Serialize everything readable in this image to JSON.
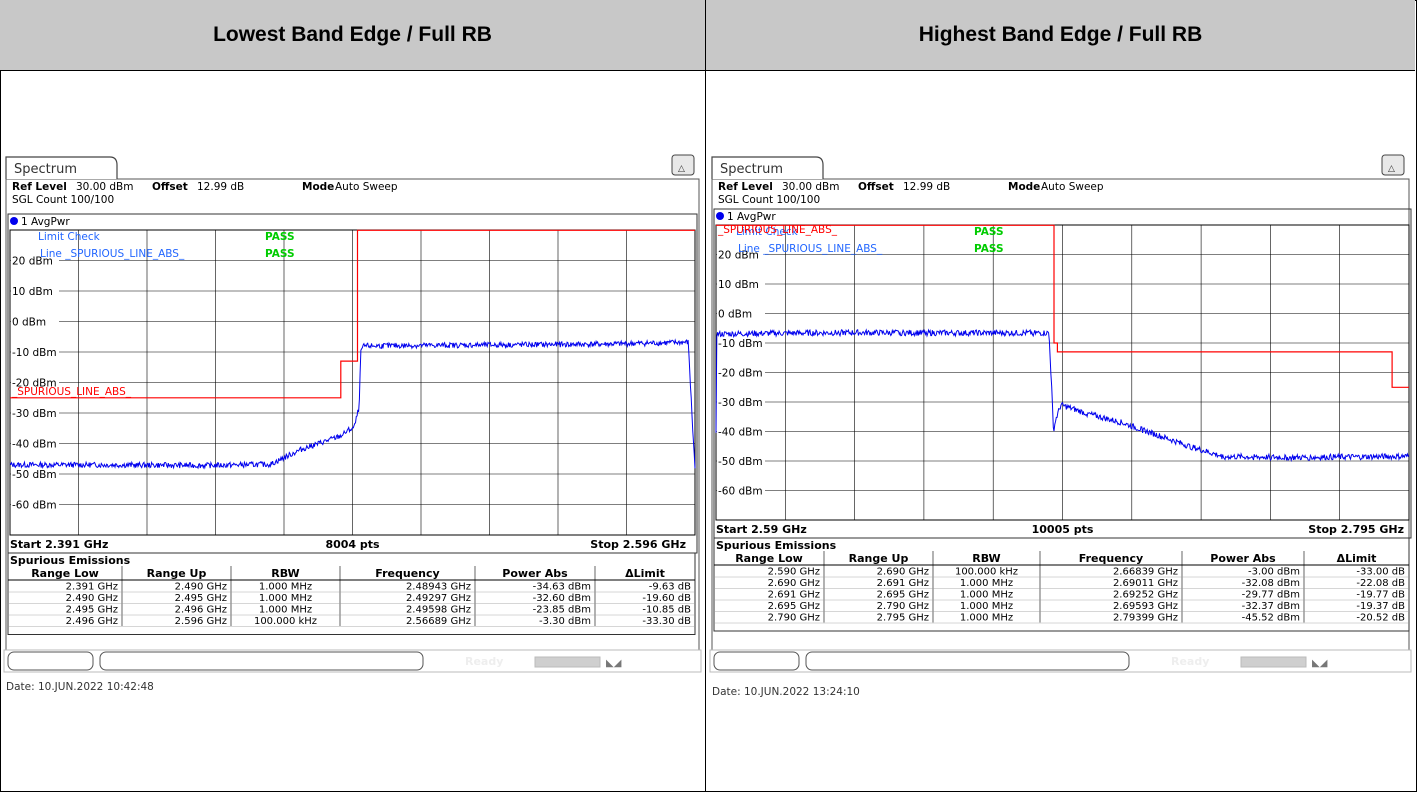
{
  "headers": {
    "left": "Lowest Band Edge / Full RB",
    "right": "Highest Band Edge / Full RB"
  },
  "colors": {
    "trace": "#0000ee",
    "limit": "#ff0000",
    "pass": "#00cc00",
    "label_blue": "#2266ff",
    "grid": "#000000"
  },
  "panels": [
    {
      "tab": "Spectrum",
      "ref_level_label": "Ref Level",
      "ref_level": "30.00 dBm",
      "offset_label": "Offset",
      "offset": "12.99 dB",
      "mode_label": "Mode",
      "mode": "Auto Sweep",
      "sgl_count": "SGL Count 100/100",
      "trace_label": "1 AvgPwr",
      "limit_check_label": "Limit Check",
      "limit_check_result": "PASS",
      "line_label": "Line _SPURIOUS_LINE_ABS_",
      "line_result": "PASS",
      "limit_line_name": "_SPURIOUS_LINE_ABS_",
      "start": "Start 2.391 GHz",
      "pts": "8004 pts",
      "stop": "Stop 2.596 GHz",
      "table_title": "Spurious Emissions",
      "columns": [
        "Range Low",
        "Range Up",
        "RBW",
        "Frequency",
        "Power Abs",
        "ΔLimit"
      ],
      "rows": [
        [
          "2.391 GHz",
          "2.490 GHz",
          "1.000 MHz",
          "2.48943 GHz",
          "-34.63 dBm",
          "-9.63 dB"
        ],
        [
          "2.490 GHz",
          "2.495 GHz",
          "1.000 MHz",
          "2.49297 GHz",
          "-32.60 dBm",
          "-19.60 dB"
        ],
        [
          "2.495 GHz",
          "2.496 GHz",
          "1.000 MHz",
          "2.49598 GHz",
          "-23.85 dBm",
          "-10.85 dB"
        ],
        [
          "2.496 GHz",
          "2.596 GHz",
          "100.000 kHz",
          "2.56689 GHz",
          "-3.30 dBm",
          "-33.30 dB"
        ]
      ],
      "status": "Ready",
      "date": "Date: 10.JUN.2022  10:42:48"
    },
    {
      "tab": "Spectrum",
      "ref_level_label": "Ref Level",
      "ref_level": "30.00 dBm",
      "offset_label": "Offset",
      "offset": "12.99 dB",
      "mode_label": "Mode",
      "mode": "Auto Sweep",
      "sgl_count": "SGL Count 100/100",
      "trace_label": "1 AvgPwr",
      "limit_check_label": "Limit Check",
      "limit_check_result": "PASS",
      "line_label": "Line _SPURIOUS_LINE_ABS_",
      "line_result": "PASS",
      "limit_line_name": "_SPURIOUS_LINE_ABS_",
      "start": "Start 2.59 GHz",
      "pts": "10005 pts",
      "stop": "Stop 2.795 GHz",
      "table_title": "Spurious Emissions",
      "columns": [
        "Range Low",
        "Range Up",
        "RBW",
        "Frequency",
        "Power Abs",
        "ΔLimit"
      ],
      "rows": [
        [
          "2.590 GHz",
          "2.690 GHz",
          "100.000 kHz",
          "2.66839 GHz",
          "-3.00 dBm",
          "-33.00 dB"
        ],
        [
          "2.690 GHz",
          "2.691 GHz",
          "1.000 MHz",
          "2.69011 GHz",
          "-32.08 dBm",
          "-22.08 dB"
        ],
        [
          "2.691 GHz",
          "2.695 GHz",
          "1.000 MHz",
          "2.69252 GHz",
          "-29.77 dBm",
          "-19.77 dB"
        ],
        [
          "2.695 GHz",
          "2.790 GHz",
          "1.000 MHz",
          "2.69593 GHz",
          "-32.37 dBm",
          "-19.37 dB"
        ],
        [
          "2.790 GHz",
          "2.795 GHz",
          "1.000 MHz",
          "2.79399 GHz",
          "-45.52 dBm",
          "-20.52 dB"
        ]
      ],
      "status": "Ready",
      "date": "Date: 10.JUN.2022  13:24:10"
    }
  ],
  "chart_data": [
    {
      "type": "line",
      "x_unit": "GHz",
      "y_unit": "dBm",
      "xlim": [
        2.391,
        2.596
      ],
      "ylim": [
        -70,
        30
      ],
      "y_ticks": [
        "20 dBm",
        "10 dBm",
        "0 dBm",
        "-10 dBm",
        "-20 dBm",
        "-30 dBm",
        "-40 dBm",
        "-50 dBm",
        "-60 dBm"
      ],
      "y_tick_values": [
        20,
        10,
        0,
        -10,
        -20,
        -30,
        -40,
        -50,
        -60
      ],
      "grid": true,
      "series": [
        {
          "name": "1 AvgPwr",
          "x": [
            2.391,
            2.42,
            2.45,
            2.469,
            2.478,
            2.49,
            2.4925,
            2.494,
            2.4955,
            2.496,
            2.497,
            2.52,
            2.545,
            2.57,
            2.594,
            2.5952,
            2.596
          ],
          "y": [
            -47,
            -47,
            -47.2,
            -46.8,
            -42,
            -37.5,
            -35.5,
            -34.8,
            -28,
            -9.5,
            -8,
            -7.8,
            -7.6,
            -7.4,
            -6.8,
            -33,
            -48
          ],
          "noise": 0.9
        },
        {
          "name": "_SPURIOUS_LINE_ABS_",
          "x": [
            2.391,
            2.49,
            2.49,
            2.495,
            2.495,
            2.596
          ],
          "y": [
            -25,
            -25,
            -13,
            -13,
            30,
            30
          ]
        }
      ]
    },
    {
      "type": "line",
      "x_unit": "GHz",
      "y_unit": "dBm",
      "xlim": [
        2.59,
        2.795
      ],
      "ylim": [
        -70,
        30
      ],
      "y_ticks": [
        "20 dBm",
        "10 dBm",
        "0 dBm",
        "-10 dBm",
        "-20 dBm",
        "-30 dBm",
        "-40 dBm",
        "-50 dBm",
        "-60 dBm"
      ],
      "y_tick_values": [
        20,
        10,
        0,
        -10,
        -20,
        -30,
        -40,
        -50,
        -60
      ],
      "grid": true,
      "series": [
        {
          "name": "1 AvgPwr",
          "x": [
            2.59,
            2.5902,
            2.6,
            2.63,
            2.66,
            2.6885,
            2.6893,
            2.6898,
            2.6905,
            2.692,
            2.7,
            2.71,
            2.72,
            2.73,
            2.74,
            2.76,
            2.79,
            2.795
          ],
          "y": [
            -40,
            -7,
            -6.8,
            -6.5,
            -6.6,
            -6.6,
            -25,
            -40,
            -36,
            -31,
            -34,
            -37,
            -41,
            -45,
            -48.5,
            -48.8,
            -48.5,
            -48.4
          ],
          "noise": 1.0
        },
        {
          "name": "_SPURIOUS_LINE_ABS_",
          "x": [
            2.59,
            2.69,
            2.69,
            2.691,
            2.691,
            2.79,
            2.79,
            2.795
          ],
          "y": [
            30,
            30,
            -10,
            -10,
            -13,
            -13,
            -25,
            -25
          ]
        }
      ]
    }
  ]
}
